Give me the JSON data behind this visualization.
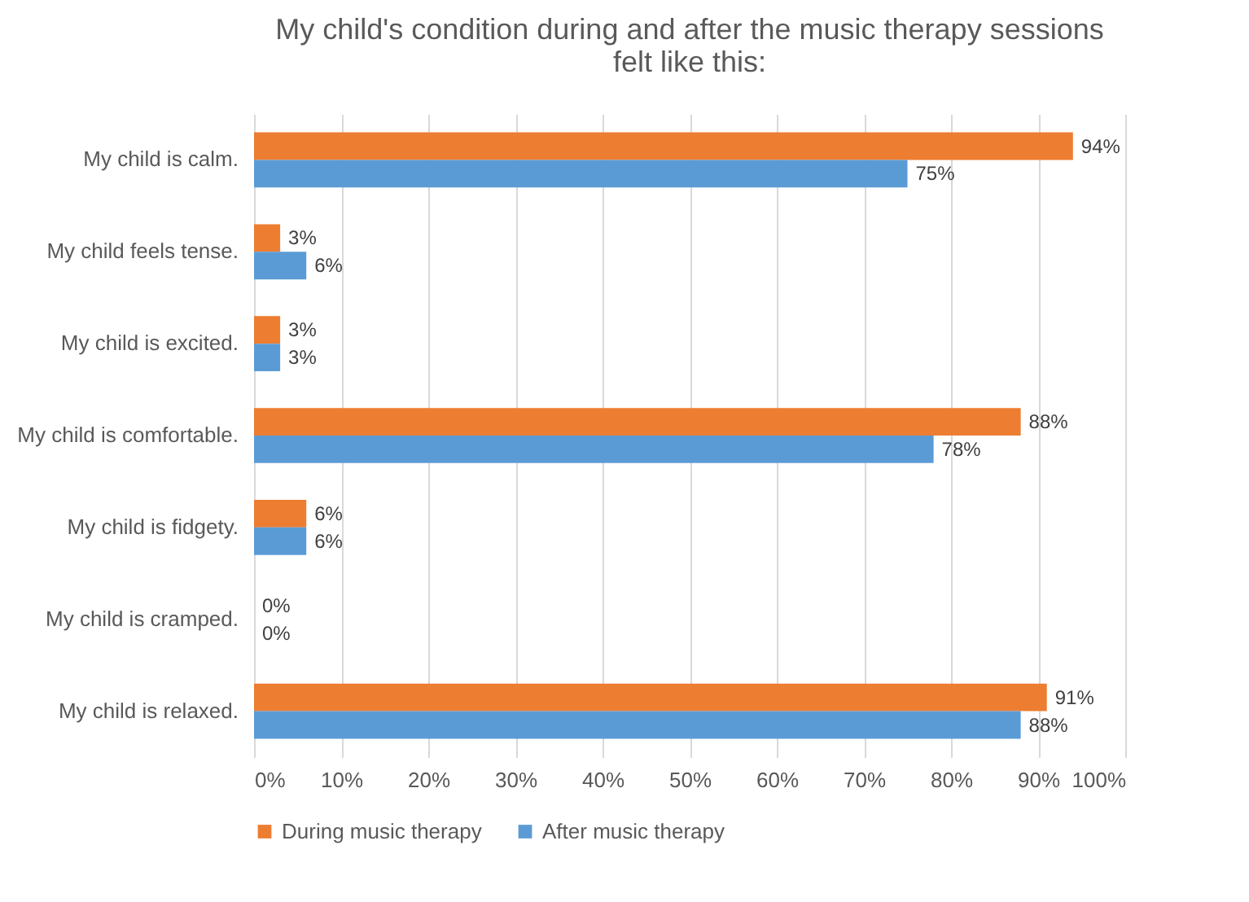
{
  "chart_data": {
    "type": "bar",
    "orientation": "horizontal",
    "title": "My child's condition during and after the music therapy sessions felt like this:",
    "categories": [
      "My child is calm.",
      "My child feels tense.",
      "My child is excited.",
      "My child is comfortable.",
      "My child is fidgety.",
      "My child is cramped.",
      "My child is relaxed."
    ],
    "series": [
      {
        "name": "During music therapy",
        "color": "#ed7d31",
        "values": [
          94,
          3,
          3,
          88,
          6,
          0,
          91
        ],
        "value_labels": [
          "94%",
          "3%",
          "3%",
          "88%",
          "6%",
          "0%",
          "91%"
        ]
      },
      {
        "name": "After music therapy",
        "color": "#5b9bd5",
        "values": [
          75,
          6,
          3,
          78,
          6,
          0,
          88
        ],
        "value_labels": [
          "75%",
          "6%",
          "3%",
          "78%",
          "6%",
          "0%",
          "88%"
        ]
      }
    ],
    "xlim": [
      0,
      100
    ],
    "xticks": [
      {
        "value": 0,
        "label": "0%"
      },
      {
        "value": 10,
        "label": "10%"
      },
      {
        "value": 20,
        "label": "20%"
      },
      {
        "value": 30,
        "label": "30%"
      },
      {
        "value": 40,
        "label": "40%"
      },
      {
        "value": 50,
        "label": "50%"
      },
      {
        "value": 60,
        "label": "60%"
      },
      {
        "value": 70,
        "label": "70%"
      },
      {
        "value": 80,
        "label": "80%"
      },
      {
        "value": 90,
        "label": "90%"
      },
      {
        "value": 100,
        "label": "100%"
      }
    ],
    "grid": "x",
    "legend": "bottom"
  }
}
